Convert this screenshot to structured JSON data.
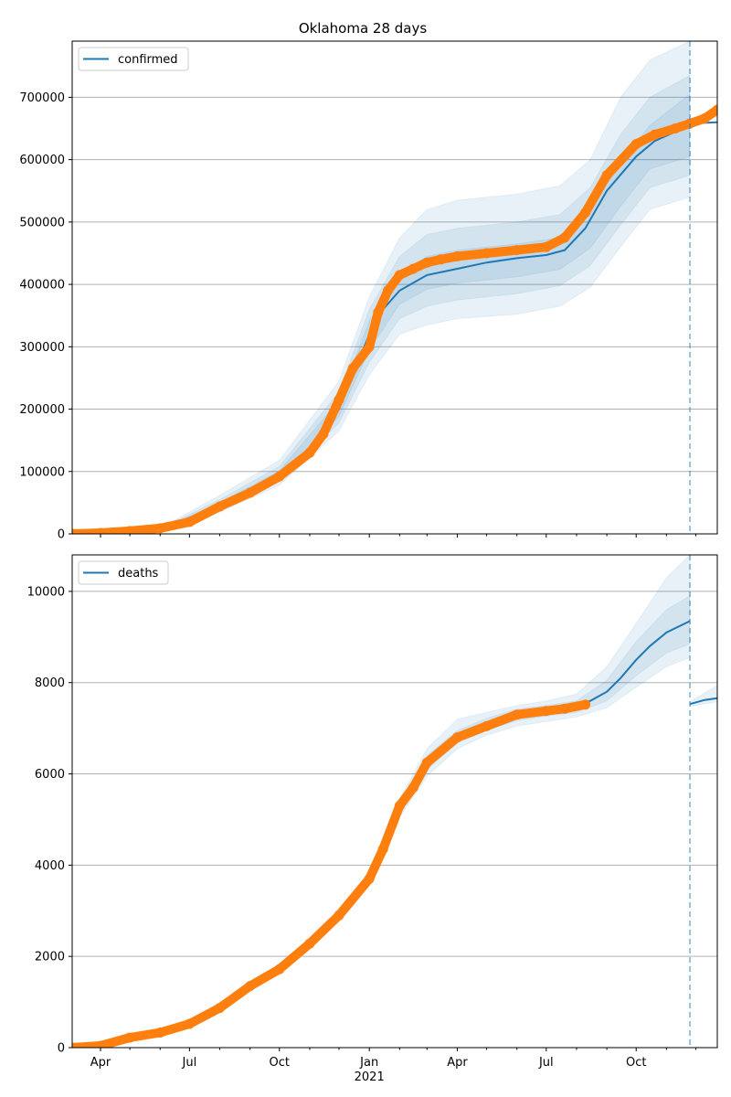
{
  "title": "Oklahoma 28 days",
  "x_axis": {
    "ticks": [
      "Apr",
      "Jul",
      "Oct",
      "Jan",
      "Apr",
      "Jul",
      "Oct"
    ],
    "tick_dates": [
      "2020-04-01",
      "2020-07-01",
      "2020-10-01",
      "2021-01-01",
      "2021-04-01",
      "2021-07-01",
      "2021-10-01"
    ],
    "year_label": "2021",
    "range": [
      "2020-03-03",
      "2021-12-23"
    ]
  },
  "forecast_date": "2021-11-25",
  "colors": {
    "model": "#1f77b4",
    "observed": "#ff7f0e",
    "band": "#1f77b4",
    "grid": "#b0b0b0",
    "forecast_line": "#1f77b4"
  },
  "chart_data": [
    {
      "type": "line",
      "title": "Oklahoma 28 days",
      "xlabel": "",
      "ylabel": "",
      "ylim": [
        0,
        790000
      ],
      "yticks": [
        0,
        100000,
        200000,
        300000,
        400000,
        500000,
        600000,
        700000
      ],
      "ytick_labels": [
        "0",
        "100000",
        "200000",
        "300000",
        "400000",
        "500000",
        "600000",
        "700000"
      ],
      "grid": "horizontal",
      "legend": {
        "position": "top-left",
        "entries": [
          "confirmed"
        ]
      },
      "series": [
        {
          "name": "confirmed",
          "kind": "model-line",
          "x": [
            "2020-03-03",
            "2020-05-01",
            "2020-06-01",
            "2020-07-01",
            "2020-08-01",
            "2020-09-01",
            "2020-10-01",
            "2020-11-01",
            "2020-12-01",
            "2021-01-01",
            "2021-01-15",
            "2021-02-01",
            "2021-03-01",
            "2021-04-01",
            "2021-05-01",
            "2021-06-01",
            "2021-07-01",
            "2021-07-20",
            "2021-08-10",
            "2021-09-01",
            "2021-10-01",
            "2021-10-20",
            "2021-11-25"
          ],
          "y": [
            0,
            3000,
            7000,
            18000,
            45000,
            70000,
            95000,
            135000,
            200000,
            320000,
            360000,
            390000,
            415000,
            425000,
            435000,
            442000,
            447000,
            455000,
            490000,
            550000,
            605000,
            630000,
            655000
          ]
        },
        {
          "name": "",
          "kind": "model-line",
          "x": [
            "2021-11-25",
            "2021-12-23"
          ],
          "y": [
            658000,
            660000
          ]
        },
        {
          "name": "",
          "kind": "observed-points",
          "x": [
            "2020-03-03",
            "2020-04-01",
            "2020-05-01",
            "2020-06-01",
            "2020-07-01",
            "2020-08-01",
            "2020-09-01",
            "2020-10-01",
            "2020-11-01",
            "2020-11-15",
            "2020-12-01",
            "2020-12-15",
            "2021-01-01",
            "2021-01-10",
            "2021-01-20",
            "2021-02-01",
            "2021-02-15",
            "2021-03-01",
            "2021-03-15",
            "2021-04-01",
            "2021-05-01",
            "2021-06-01",
            "2021-07-01",
            "2021-07-20",
            "2021-08-10",
            "2021-09-01",
            "2021-10-01",
            "2021-10-20",
            "2021-11-10",
            "2021-11-25",
            "2021-12-10",
            "2021-12-23"
          ],
          "y": [
            0,
            1500,
            4500,
            9000,
            19000,
            44000,
            66000,
            92000,
            130000,
            160000,
            215000,
            265000,
            300000,
            355000,
            390000,
            415000,
            425000,
            435000,
            440000,
            445000,
            450000,
            455000,
            460000,
            475000,
            515000,
            575000,
            625000,
            640000,
            650000,
            658000,
            666000,
            680000
          ]
        }
      ],
      "bands": [
        {
          "x": [
            "2020-06-01",
            "2020-08-01",
            "2020-10-01",
            "2020-12-01",
            "2021-01-01",
            "2021-02-01",
            "2021-03-01",
            "2021-04-01",
            "2021-06-01",
            "2021-07-15",
            "2021-08-15",
            "2021-09-15",
            "2021-10-15",
            "2021-11-25"
          ],
          "low": [
            5000,
            35000,
            78000,
            165000,
            255000,
            320000,
            335000,
            345000,
            352000,
            365000,
            395000,
            460000,
            520000,
            540000
          ],
          "high": [
            9000,
            62000,
            118000,
            245000,
            380000,
            475000,
            520000,
            535000,
            545000,
            558000,
            600000,
            700000,
            760000,
            790000
          ]
        },
        {
          "x": [
            "2020-06-01",
            "2020-08-01",
            "2020-10-01",
            "2020-12-01",
            "2021-01-01",
            "2021-02-01",
            "2021-03-01",
            "2021-04-01",
            "2021-06-01",
            "2021-07-15",
            "2021-08-15",
            "2021-09-15",
            "2021-10-15",
            "2021-11-25"
          ],
          "low": [
            6000,
            39000,
            84000,
            178000,
            275000,
            345000,
            365000,
            375000,
            385000,
            398000,
            430000,
            495000,
            555000,
            575000
          ],
          "high": [
            8000,
            55000,
            108000,
            228000,
            360000,
            445000,
            480000,
            490000,
            500000,
            512000,
            555000,
            640000,
            700000,
            735000
          ]
        },
        {
          "x": [
            "2020-06-01",
            "2020-08-01",
            "2020-10-01",
            "2020-12-01",
            "2021-01-01",
            "2021-02-01",
            "2021-03-01",
            "2021-04-01",
            "2021-06-01",
            "2021-07-15",
            "2021-08-15",
            "2021-09-15",
            "2021-10-15",
            "2021-11-25"
          ],
          "low": [
            6500,
            42000,
            89000,
            188000,
            295000,
            368000,
            392000,
            402000,
            412000,
            424000,
            458000,
            525000,
            585000,
            605000
          ],
          "high": [
            7500,
            50000,
            101000,
            214000,
            342000,
            418000,
            445000,
            455000,
            465000,
            475000,
            520000,
            595000,
            655000,
            705000
          ]
        }
      ]
    },
    {
      "type": "line",
      "title": "",
      "xlabel": "",
      "ylabel": "",
      "ylim": [
        0,
        10800
      ],
      "yticks": [
        0,
        2000,
        4000,
        6000,
        8000,
        10000
      ],
      "ytick_labels": [
        "0",
        "2000",
        "4000",
        "6000",
        "8000",
        "10000"
      ],
      "grid": "horizontal",
      "legend": {
        "position": "top-left",
        "entries": [
          "deaths"
        ]
      },
      "series": [
        {
          "name": "deaths",
          "kind": "model-line",
          "x": [
            "2020-03-03",
            "2020-04-01",
            "2020-05-01",
            "2020-06-01",
            "2020-07-01",
            "2020-08-01",
            "2020-09-01",
            "2020-10-01",
            "2020-11-01",
            "2020-12-01",
            "2021-01-01",
            "2021-01-15",
            "2021-02-01",
            "2021-02-15",
            "2021-03-01",
            "2021-04-01",
            "2021-05-01",
            "2021-06-01",
            "2021-07-01",
            "2021-08-01",
            "2021-08-15",
            "2021-09-01",
            "2021-09-15",
            "2021-10-01",
            "2021-10-15",
            "2021-11-01",
            "2021-11-25"
          ],
          "y": [
            0,
            40,
            220,
            330,
            520,
            870,
            1350,
            1720,
            2280,
            2900,
            3700,
            4300,
            5250,
            5650,
            6250,
            6800,
            7050,
            7300,
            7380,
            7450,
            7600,
            7800,
            8100,
            8500,
            8800,
            9100,
            9350
          ]
        },
        {
          "name": "",
          "kind": "model-line",
          "x": [
            "2021-11-25",
            "2021-12-10",
            "2021-12-23"
          ],
          "y": [
            7530,
            7620,
            7660
          ]
        },
        {
          "name": "",
          "kind": "observed-points",
          "x": [
            "2020-03-03",
            "2020-04-01",
            "2020-05-01",
            "2020-06-01",
            "2020-07-01",
            "2020-08-01",
            "2020-09-01",
            "2020-10-01",
            "2020-11-01",
            "2020-12-01",
            "2021-01-01",
            "2021-01-15",
            "2021-02-01",
            "2021-02-15",
            "2021-03-01",
            "2021-04-01",
            "2021-05-01",
            "2021-06-01",
            "2021-07-01",
            "2021-07-20",
            "2021-08-10"
          ],
          "y": [
            0,
            40,
            220,
            330,
            520,
            870,
            1350,
            1720,
            2280,
            2900,
            3700,
            4350,
            5300,
            5700,
            6250,
            6800,
            7050,
            7300,
            7380,
            7430,
            7520
          ]
        }
      ],
      "bands": [
        {
          "x": [
            "2021-01-01",
            "2021-02-01",
            "2021-03-01",
            "2021-04-01",
            "2021-05-01",
            "2021-06-01",
            "2021-07-01",
            "2021-08-01",
            "2021-09-01",
            "2021-10-01",
            "2021-11-01",
            "2021-11-25"
          ],
          "low": [
            3600,
            5050,
            5950,
            6550,
            6850,
            7050,
            7150,
            7250,
            7450,
            7900,
            8350,
            8550
          ],
          "high": [
            3800,
            5450,
            6550,
            7200,
            7350,
            7500,
            7600,
            7750,
            8350,
            9300,
            10300,
            10800
          ]
        },
        {
          "x": [
            "2021-01-01",
            "2021-02-01",
            "2021-03-01",
            "2021-04-01",
            "2021-05-01",
            "2021-06-01",
            "2021-07-01",
            "2021-08-01",
            "2021-09-01",
            "2021-10-01",
            "2021-11-01",
            "2021-11-25"
          ],
          "low": [
            3650,
            5150,
            6100,
            6680,
            6950,
            7170,
            7270,
            7350,
            7600,
            8150,
            8650,
            8850
          ],
          "high": [
            3750,
            5350,
            6400,
            6950,
            7220,
            7420,
            7500,
            7600,
            8050,
            8900,
            9600,
            9900
          ]
        },
        {
          "x": [
            "2021-11-25",
            "2021-12-23"
          ],
          "low": [
            7480,
            7580
          ],
          "high": [
            7580,
            7940
          ]
        }
      ]
    }
  ]
}
